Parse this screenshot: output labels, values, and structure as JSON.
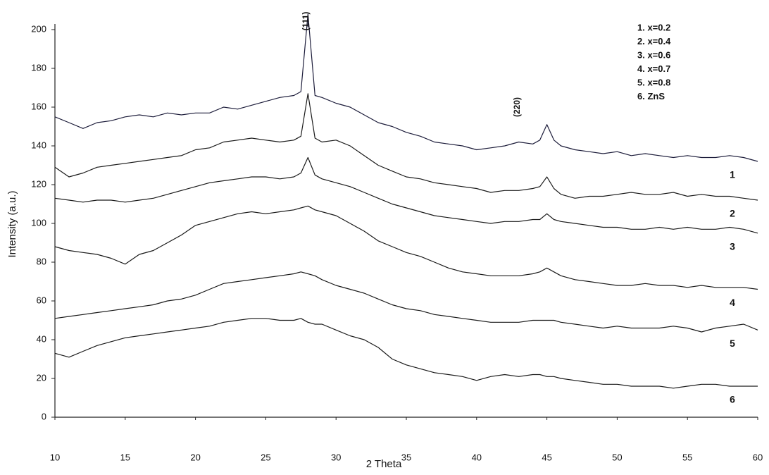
{
  "chart_data": {
    "type": "line",
    "xlabel": "2 Theta",
    "ylabel": "Intensity (a.u.)",
    "x": [
      10,
      11,
      12,
      13,
      14,
      15,
      16,
      17,
      18,
      19,
      20,
      21,
      22,
      23,
      24,
      25,
      26,
      27,
      27.5,
      28,
      28.5,
      29,
      30,
      31,
      32,
      33,
      34,
      35,
      36,
      37,
      38,
      39,
      40,
      41,
      42,
      43,
      44,
      44.5,
      45,
      45.5,
      46,
      47,
      48,
      49,
      50,
      51,
      52,
      53,
      54,
      55,
      56,
      57,
      58,
      59,
      60
    ],
    "xlim": [
      10,
      60
    ],
    "xticks": [
      10,
      15,
      20,
      25,
      30,
      35,
      40,
      45,
      50,
      55,
      60
    ],
    "ylim": [
      0,
      200
    ],
    "yticks": [
      0,
      20,
      40,
      60,
      80,
      100,
      120,
      140,
      160,
      180,
      200
    ],
    "annotations": [
      "(111)",
      "(220)"
    ],
    "series": [
      {
        "name": "1. x=0.2",
        "label": "1",
        "color": "#1c1c3a",
        "values": [
          155,
          152,
          149,
          152,
          153,
          155,
          156,
          155,
          157,
          156,
          157,
          157,
          160,
          159,
          161,
          163,
          165,
          166,
          168,
          208,
          166,
          165,
          162,
          160,
          156,
          152,
          150,
          147,
          145,
          142,
          141,
          140,
          138,
          139,
          140,
          142,
          141,
          143,
          151,
          143,
          140,
          138,
          137,
          136,
          137,
          135,
          136,
          135,
          134,
          135,
          134,
          134,
          135,
          134,
          132
        ]
      },
      {
        "name": "2. x=0.4",
        "label": "2",
        "color": "#1a1a1a",
        "values": [
          129,
          124,
          126,
          129,
          130,
          131,
          132,
          133,
          134,
          135,
          138,
          139,
          142,
          143,
          144,
          143,
          142,
          143,
          145,
          167,
          144,
          142,
          143,
          140,
          135,
          130,
          127,
          124,
          123,
          121,
          120,
          119,
          118,
          116,
          117,
          117,
          118,
          119,
          124,
          118,
          115,
          113,
          114,
          114,
          115,
          116,
          115,
          115,
          116,
          114,
          115,
          114,
          114,
          113,
          112
        ]
      },
      {
        "name": "3. x=0.6",
        "label": "3",
        "color": "#1a1a1a",
        "values": [
          113,
          112,
          111,
          112,
          112,
          111,
          112,
          113,
          115,
          117,
          119,
          121,
          122,
          123,
          124,
          124,
          123,
          124,
          126,
          134,
          125,
          123,
          121,
          119,
          116,
          113,
          110,
          108,
          106,
          104,
          103,
          102,
          101,
          100,
          101,
          101,
          102,
          102,
          105,
          102,
          101,
          100,
          99,
          98,
          98,
          97,
          97,
          98,
          97,
          98,
          97,
          97,
          98,
          97,
          95
        ]
      },
      {
        "name": "4. x=0.7",
        "label": "4",
        "color": "#1a1a1a",
        "values": [
          88,
          86,
          85,
          84,
          82,
          79,
          84,
          86,
          90,
          94,
          99,
          101,
          103,
          105,
          106,
          105,
          106,
          107,
          108,
          109,
          107,
          106,
          104,
          100,
          96,
          91,
          88,
          85,
          83,
          80,
          77,
          75,
          74,
          73,
          73,
          73,
          74,
          75,
          77,
          75,
          73,
          71,
          70,
          69,
          68,
          68,
          69,
          68,
          68,
          67,
          68,
          67,
          67,
          67,
          66
        ]
      },
      {
        "name": "5. x=0.8",
        "label": "5",
        "color": "#1a1a1a",
        "values": [
          51,
          52,
          53,
          54,
          55,
          56,
          57,
          58,
          60,
          61,
          63,
          66,
          69,
          70,
          71,
          72,
          73,
          74,
          75,
          74,
          73,
          71,
          68,
          66,
          64,
          61,
          58,
          56,
          55,
          53,
          52,
          51,
          50,
          49,
          49,
          49,
          50,
          50,
          50,
          50,
          49,
          48,
          47,
          46,
          47,
          46,
          46,
          46,
          47,
          46,
          44,
          46,
          47,
          48,
          45
        ]
      },
      {
        "name": "6. ZnS",
        "label": "6",
        "color": "#1a1a1a",
        "values": [
          33,
          31,
          34,
          37,
          39,
          41,
          42,
          43,
          44,
          45,
          46,
          47,
          49,
          50,
          51,
          51,
          50,
          50,
          51,
          49,
          48,
          48,
          45,
          42,
          40,
          36,
          30,
          27,
          25,
          23,
          22,
          21,
          19,
          21,
          22,
          21,
          22,
          22,
          21,
          21,
          20,
          19,
          18,
          17,
          17,
          16,
          16,
          16,
          15,
          16,
          17,
          17,
          16,
          16,
          16
        ]
      }
    ]
  }
}
